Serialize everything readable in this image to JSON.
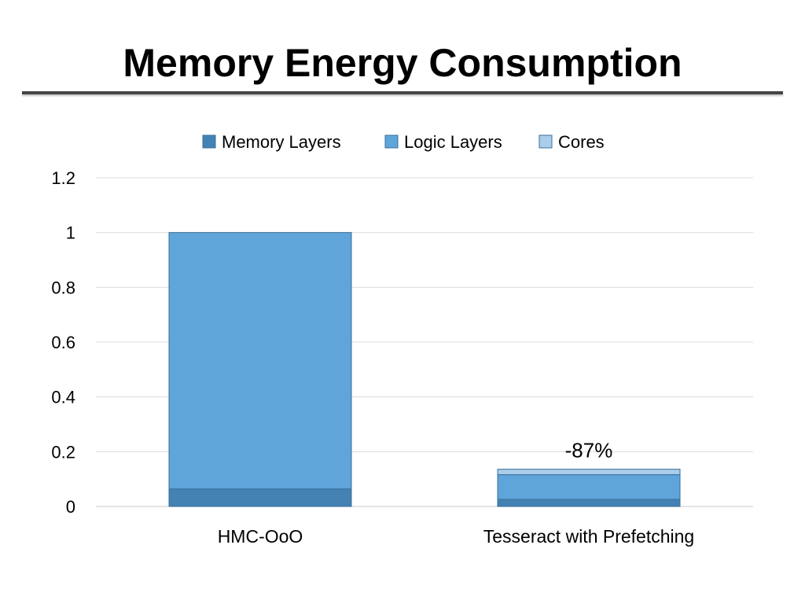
{
  "slide": {
    "title": "Memory Energy Consumption"
  },
  "chart_data": {
    "type": "bar",
    "stacked": true,
    "categories": [
      "HMC-OoO",
      "Tesseract with Prefetching"
    ],
    "series": [
      {
        "name": "Memory Layers",
        "values": [
          0.064,
          0.026
        ],
        "color": "#4482B4"
      },
      {
        "name": "Logic Layers",
        "values": [
          0.936,
          0.09
        ],
        "color": "#5FA5DA"
      },
      {
        "name": "Cores",
        "values": [
          0.0,
          0.02
        ],
        "color": "#A9CDEA"
      }
    ],
    "ylim": [
      0,
      1.2
    ],
    "yticks": [
      "0",
      "0.2",
      "0.4",
      "0.6",
      "0.8",
      "1",
      "1.2"
    ],
    "annotations": [
      {
        "category": "Tesseract with Prefetching",
        "text": "-87%"
      }
    ],
    "legend_position": "top-center",
    "grid": true
  }
}
